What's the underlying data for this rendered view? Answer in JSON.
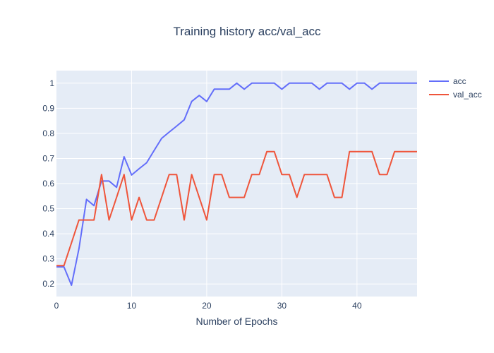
{
  "chart_data": {
    "type": "line",
    "title": "Training history acc/val_acc",
    "xlabel": "Number of Epochs",
    "ylabel": "",
    "xlim": [
      0,
      48
    ],
    "ylim": [
      0.15,
      1.05
    ],
    "x_ticks": [
      0,
      10,
      20,
      30,
      40
    ],
    "y_ticks": [
      0.2,
      0.3,
      0.4,
      0.5,
      0.6,
      0.7,
      0.8,
      0.9,
      1
    ],
    "grid": true,
    "legend_position": "top-right",
    "x": [
      0,
      1,
      2,
      3,
      4,
      5,
      6,
      7,
      8,
      9,
      10,
      11,
      12,
      13,
      14,
      15,
      16,
      17,
      18,
      19,
      20,
      21,
      22,
      23,
      24,
      25,
      26,
      27,
      28,
      29,
      30,
      31,
      32,
      33,
      34,
      35,
      36,
      37,
      38,
      39,
      40,
      41,
      42,
      43,
      44,
      45,
      46,
      47,
      48
    ],
    "series": [
      {
        "name": "acc",
        "color": "#636efa",
        "values": [
          0.268,
          0.268,
          0.195,
          0.341,
          0.537,
          0.512,
          0.61,
          0.61,
          0.585,
          0.707,
          0.634,
          0.659,
          0.683,
          0.732,
          0.78,
          0.805,
          0.829,
          0.854,
          0.927,
          0.951,
          0.927,
          0.976,
          0.976,
          0.976,
          1.0,
          0.976,
          1.0,
          1.0,
          1.0,
          1.0,
          0.976,
          1.0,
          1.0,
          1.0,
          1.0,
          0.976,
          1.0,
          1.0,
          1.0,
          0.976,
          1.0,
          1.0,
          0.976,
          1.0,
          1.0,
          1.0,
          1.0,
          1.0,
          1.0
        ]
      },
      {
        "name": "val_acc",
        "color": "#ef553b",
        "values": [
          0.273,
          0.273,
          0.364,
          0.455,
          0.455,
          0.455,
          0.636,
          0.455,
          0.545,
          0.636,
          0.455,
          0.545,
          0.455,
          0.455,
          0.545,
          0.636,
          0.636,
          0.455,
          0.636,
          0.545,
          0.455,
          0.636,
          0.636,
          0.545,
          0.545,
          0.545,
          0.636,
          0.636,
          0.727,
          0.727,
          0.636,
          0.636,
          0.545,
          0.636,
          0.636,
          0.636,
          0.636,
          0.545,
          0.545,
          0.727,
          0.727,
          0.727,
          0.727,
          0.636,
          0.636,
          0.727,
          0.727,
          0.727,
          0.727
        ]
      }
    ]
  }
}
